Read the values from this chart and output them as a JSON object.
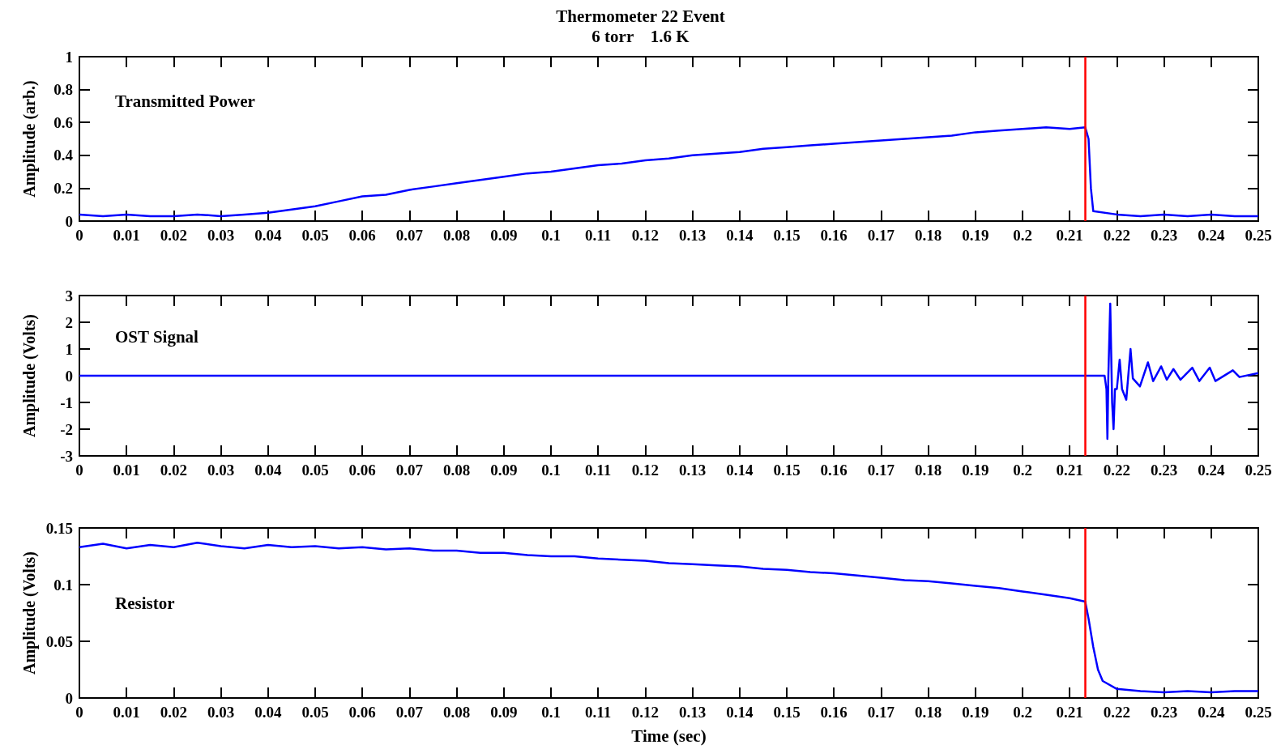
{
  "chart_data": [
    {
      "type": "line",
      "title": "Thermometer 22 Event",
      "subtitle": "6 torr    1.6 K",
      "ylabel": "Amplitude (arb.)",
      "annotations": [
        "Transmitted Power"
      ],
      "marker": "none",
      "xlim": [
        0,
        0.25
      ],
      "xticks": [
        0,
        0.01,
        0.02,
        0.03,
        0.04,
        0.05,
        0.06,
        0.07,
        0.08,
        0.09,
        0.1,
        0.11,
        0.12,
        0.13,
        0.14,
        0.15,
        0.16,
        0.17,
        0.18,
        0.19,
        0.2,
        0.21,
        0.22,
        0.23,
        0.24,
        0.25
      ],
      "ylim": [
        0,
        1
      ],
      "yticks": [
        0,
        0.2,
        0.4,
        0.6,
        0.8,
        1
      ],
      "ref_lines": [
        {
          "axis": "x",
          "value": 0.2133,
          "color": "#ff0000"
        }
      ],
      "series": [
        {
          "color": "#0000ff",
          "x": [
            0,
            0.005,
            0.01,
            0.015,
            0.02,
            0.025,
            0.03,
            0.035,
            0.04,
            0.045,
            0.05,
            0.055,
            0.06,
            0.065,
            0.07,
            0.075,
            0.08,
            0.085,
            0.09,
            0.095,
            0.1,
            0.105,
            0.11,
            0.115,
            0.12,
            0.125,
            0.13,
            0.135,
            0.14,
            0.145,
            0.15,
            0.155,
            0.16,
            0.165,
            0.17,
            0.175,
            0.18,
            0.185,
            0.19,
            0.195,
            0.2,
            0.205,
            0.21,
            0.2133,
            0.214,
            0.2145,
            0.215,
            0.22,
            0.225,
            0.23,
            0.235,
            0.24,
            0.245,
            0.25
          ],
          "values": [
            0.04,
            0.03,
            0.04,
            0.03,
            0.03,
            0.04,
            0.03,
            0.04,
            0.05,
            0.07,
            0.09,
            0.12,
            0.15,
            0.16,
            0.19,
            0.21,
            0.23,
            0.25,
            0.27,
            0.29,
            0.3,
            0.32,
            0.34,
            0.35,
            0.37,
            0.38,
            0.4,
            0.41,
            0.42,
            0.44,
            0.45,
            0.46,
            0.47,
            0.48,
            0.49,
            0.5,
            0.51,
            0.52,
            0.54,
            0.55,
            0.56,
            0.57,
            0.56,
            0.57,
            0.5,
            0.2,
            0.06,
            0.04,
            0.03,
            0.04,
            0.03,
            0.04,
            0.03,
            0.03
          ]
        }
      ]
    },
    {
      "type": "line",
      "ylabel": "Amplitude (Volts)",
      "annotations": [
        "OST Signal"
      ],
      "marker": "none",
      "xlim": [
        0,
        0.25
      ],
      "xticks": [
        0,
        0.01,
        0.02,
        0.03,
        0.04,
        0.05,
        0.06,
        0.07,
        0.08,
        0.09,
        0.1,
        0.11,
        0.12,
        0.13,
        0.14,
        0.15,
        0.16,
        0.17,
        0.18,
        0.19,
        0.2,
        0.21,
        0.22,
        0.23,
        0.24,
        0.25
      ],
      "ylim": [
        -3,
        3
      ],
      "yticks": [
        -3,
        -2,
        -1,
        0,
        1,
        2,
        3
      ],
      "ref_lines": [
        {
          "axis": "x",
          "value": 0.2133,
          "color": "#ff0000"
        }
      ],
      "series": [
        {
          "color": "#0000ff",
          "x": [
            0,
            0.05,
            0.1,
            0.15,
            0.2,
            0.2174,
            0.2178,
            0.218,
            0.2182,
            0.2186,
            0.219,
            0.2193,
            0.2196,
            0.22,
            0.2206,
            0.2211,
            0.222,
            0.2229,
            0.2234,
            0.2249,
            0.2266,
            0.2277,
            0.2294,
            0.2306,
            0.232,
            0.2335,
            0.236,
            0.2375,
            0.2397,
            0.2409,
            0.2446,
            0.246,
            0.25
          ],
          "values": [
            0,
            0,
            0,
            0,
            0,
            0,
            -0.5,
            -2.36,
            0,
            2.7,
            -1,
            -2,
            -0.5,
            -0.5,
            0.6,
            -0.5,
            -0.9,
            1,
            -0.1,
            -0.4,
            0.5,
            -0.2,
            0.35,
            -0.15,
            0.25,
            -0.15,
            0.3,
            -0.2,
            0.3,
            -0.2,
            0.2,
            -0.05,
            0.1
          ]
        }
      ]
    },
    {
      "type": "line",
      "xlabel": "Time (sec)",
      "ylabel": "Amplitude (Volts)",
      "annotations": [
        "Resistor"
      ],
      "marker": "none",
      "xlim": [
        0,
        0.25
      ],
      "xticks": [
        0,
        0.01,
        0.02,
        0.03,
        0.04,
        0.05,
        0.06,
        0.07,
        0.08,
        0.09,
        0.1,
        0.11,
        0.12,
        0.13,
        0.14,
        0.15,
        0.16,
        0.17,
        0.18,
        0.19,
        0.2,
        0.21,
        0.22,
        0.23,
        0.24,
        0.25
      ],
      "ylim": [
        0,
        0.15
      ],
      "yticks": [
        0,
        0.05,
        0.1,
        0.15
      ],
      "ref_lines": [
        {
          "axis": "x",
          "value": 0.2133,
          "color": "#ff0000"
        }
      ],
      "series": [
        {
          "color": "#0000ff",
          "x": [
            0,
            0.005,
            0.01,
            0.015,
            0.02,
            0.025,
            0.03,
            0.035,
            0.04,
            0.045,
            0.05,
            0.055,
            0.06,
            0.065,
            0.07,
            0.075,
            0.08,
            0.085,
            0.09,
            0.095,
            0.1,
            0.105,
            0.11,
            0.115,
            0.12,
            0.125,
            0.13,
            0.135,
            0.14,
            0.145,
            0.15,
            0.155,
            0.16,
            0.165,
            0.17,
            0.175,
            0.18,
            0.185,
            0.19,
            0.195,
            0.2,
            0.205,
            0.21,
            0.2133,
            0.214,
            0.215,
            0.216,
            0.217,
            0.22,
            0.225,
            0.23,
            0.235,
            0.24,
            0.245,
            0.25
          ],
          "values": [
            0.133,
            0.136,
            0.132,
            0.135,
            0.133,
            0.137,
            0.134,
            0.132,
            0.135,
            0.133,
            0.134,
            0.132,
            0.133,
            0.131,
            0.132,
            0.13,
            0.13,
            0.128,
            0.128,
            0.126,
            0.125,
            0.125,
            0.123,
            0.122,
            0.121,
            0.119,
            0.118,
            0.117,
            0.116,
            0.114,
            0.113,
            0.111,
            0.11,
            0.108,
            0.106,
            0.104,
            0.103,
            0.101,
            0.099,
            0.097,
            0.094,
            0.091,
            0.088,
            0.085,
            0.07,
            0.045,
            0.025,
            0.015,
            0.008,
            0.006,
            0.005,
            0.006,
            0.005,
            0.006,
            0.006
          ]
        }
      ]
    }
  ]
}
